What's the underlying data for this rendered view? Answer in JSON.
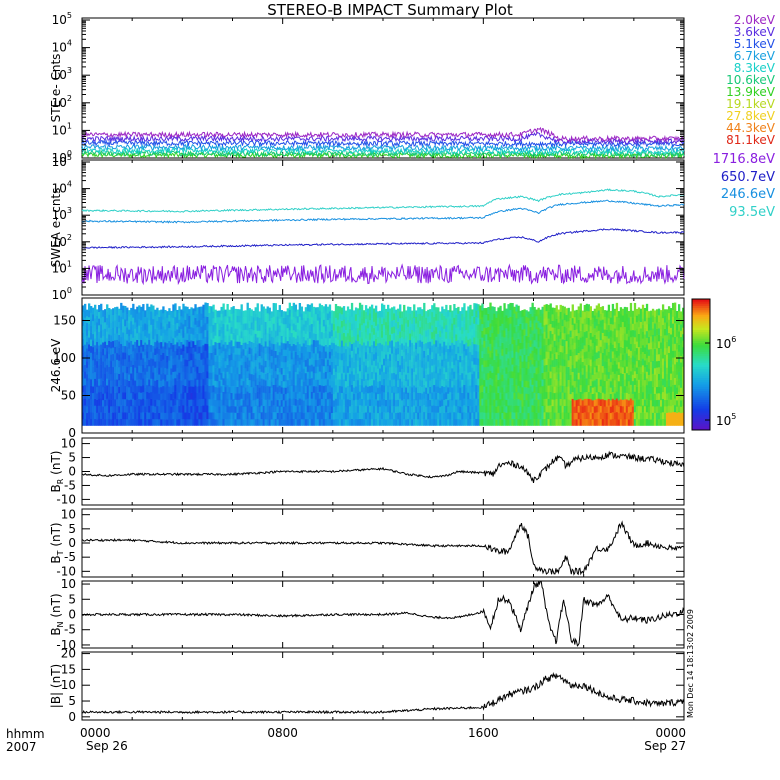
{
  "title": "STEREO-B IMPACT Summary Plot",
  "ste_energies": [
    {
      "label": "2.0keV",
      "color": "#9c27c4"
    },
    {
      "label": "3.6keV",
      "color": "#5a2ee0"
    },
    {
      "label": "5.1keV",
      "color": "#2250e8"
    },
    {
      "label": "6.7keV",
      "color": "#18a0e0"
    },
    {
      "label": "8.3keV",
      "color": "#18d0c8"
    },
    {
      "label": "10.6keV",
      "color": "#18c878"
    },
    {
      "label": "13.9keV",
      "color": "#30d020"
    },
    {
      "label": "19.1keV",
      "color": "#b8d820"
    },
    {
      "label": "27.8keV",
      "color": "#f0d020"
    },
    {
      "label": "44.3keV",
      "color": "#f08018"
    },
    {
      "label": "81.1keV",
      "color": "#e02818"
    }
  ],
  "swea_energies": [
    {
      "label": "1716.8eV",
      "color": "#8a20e0"
    },
    {
      "label": "650.7eV",
      "color": "#2020c8"
    },
    {
      "label": "246.6eV",
      "color": "#1890e0"
    },
    {
      "label": "93.5eV",
      "color": "#30d0c8"
    }
  ],
  "panels": {
    "ste": {
      "ylabel": "STE e- Cnts",
      "ytick_exponents": [
        "0",
        "1",
        "2",
        "3",
        "4",
        "5"
      ]
    },
    "swea": {
      "ylabel": "SWEA e- cnts",
      "ytick_exponents": [
        "0",
        "1",
        "2",
        "3",
        "4",
        "5"
      ]
    },
    "pad": {
      "ylabel": "246.6 eV",
      "yticks": [
        "0",
        "50",
        "100",
        "150"
      ],
      "colorbar_exponents": [
        "6",
        "5"
      ]
    },
    "br": {
      "ylabel_sub": "R",
      "yticks": [
        "10",
        "5",
        "0",
        "-5",
        "-10"
      ]
    },
    "bt": {
      "ylabel_sub": "T",
      "yticks": [
        "10",
        "5",
        "0",
        "-5",
        "-10"
      ]
    },
    "bn": {
      "ylabel_sub": "N",
      "yticks": [
        "10",
        "5",
        "0",
        "-5",
        "-10"
      ]
    },
    "bmag": {
      "ylabel": "|B| (nT)",
      "yticks": [
        "20",
        "15",
        "10",
        "5",
        "0"
      ]
    }
  },
  "xaxis": {
    "ticks": [
      "0000",
      "0800",
      "1600",
      "0000"
    ],
    "dates": {
      "start": "Sep 26",
      "end": "Sep 27"
    },
    "label_top": "hhmm",
    "label_bottom": "2007"
  },
  "side_note": "Mon Dec 14 18:13:02 2009",
  "chart_data": [
    {
      "type": "line",
      "panel": "STE",
      "title": "STEREO-B IMPACT Summary Plot",
      "ylabel": "STE e- Cnts",
      "yscale": "log",
      "ylim": [
        1,
        100000
      ],
      "xlim_hours": [
        0,
        24
      ],
      "series": [
        {
          "name": "2.0keV",
          "x": [
            0,
            6,
            12,
            17.5,
            18.2,
            19,
            24
          ],
          "y": [
            7,
            7,
            7,
            7,
            11,
            5,
            5
          ]
        },
        {
          "name": "3.6keV",
          "x": [
            0,
            17.5,
            18.2,
            19,
            24
          ],
          "y": [
            5,
            5,
            7,
            4,
            4
          ]
        },
        {
          "name": "5.1keV",
          "x": [
            0,
            24
          ],
          "y": [
            3.5,
            3.2
          ]
        },
        {
          "name": "6.7keV",
          "x": [
            0,
            24
          ],
          "y": [
            2.5,
            2.2
          ]
        },
        {
          "name": "8.3keV",
          "x": [
            0,
            24
          ],
          "y": [
            1.9,
            1.7
          ]
        },
        {
          "name": "10.6keV",
          "x": [
            0,
            24
          ],
          "y": [
            1.5,
            1.4
          ]
        },
        {
          "name": "13.9keV",
          "x": [
            0,
            24
          ],
          "y": [
            1.3,
            1.2
          ]
        }
      ]
    },
    {
      "type": "line",
      "panel": "SWEA",
      "ylabel": "SWEA e- cnts",
      "yscale": "log",
      "ylim": [
        1,
        100000
      ],
      "series": [
        {
          "name": "93.5eV",
          "x": [
            0,
            4,
            10,
            16,
            16.5,
            17.5,
            18.2,
            19,
            20,
            21,
            22,
            23,
            24
          ],
          "y": [
            1500,
            1400,
            1800,
            2200,
            4000,
            5000,
            3500,
            6000,
            7000,
            9000,
            8000,
            5000,
            6000
          ]
        },
        {
          "name": "246.6eV",
          "x": [
            0,
            4,
            10,
            16,
            16.5,
            17.5,
            18.2,
            19,
            20,
            21,
            22,
            23,
            24
          ],
          "y": [
            600,
            550,
            700,
            800,
            1300,
            1800,
            1200,
            2500,
            3000,
            3500,
            2800,
            2200,
            2500
          ]
        },
        {
          "name": "650.7eV",
          "x": [
            0,
            4,
            10,
            16,
            16.5,
            17.5,
            18.2,
            19,
            20,
            21,
            22,
            23,
            24
          ],
          "y": [
            60,
            65,
            80,
            90,
            120,
            150,
            100,
            200,
            250,
            300,
            260,
            220,
            230
          ]
        },
        {
          "name": "1716.8eV",
          "x": [
            0,
            24
          ],
          "y": [
            6,
            6
          ]
        }
      ]
    },
    {
      "type": "heatmap",
      "panel": "pitch angle",
      "ylabel": "246.6 eV",
      "ylim": [
        0,
        180
      ],
      "colorbar_range": [
        50000,
        2000000
      ],
      "colorbar_scale": "log"
    },
    {
      "type": "line",
      "panel": "BR",
      "ylabel": "BR (nT)",
      "ylim": [
        -10,
        10
      ],
      "x": [
        0,
        1,
        2,
        4,
        6,
        8,
        10,
        12,
        13,
        14,
        14.5,
        15,
        16,
        16.4,
        16.6,
        17,
        17.5,
        18,
        18.5,
        18.8,
        19,
        19.3,
        19.6,
        20,
        20.5,
        21,
        22,
        23,
        23.5,
        24
      ],
      "y": [
        -1,
        -1.5,
        -1,
        -1,
        -1,
        0,
        0,
        1,
        -1,
        -2,
        -1.5,
        0,
        -0.5,
        -1,
        2,
        3,
        2,
        -3,
        1,
        4,
        5,
        2,
        4,
        5,
        5,
        6,
        5,
        4,
        3,
        2
      ]
    },
    {
      "type": "line",
      "panel": "BT",
      "ylabel": "BT (nT)",
      "ylim": [
        -10,
        10
      ],
      "x": [
        0,
        2,
        4,
        6,
        8,
        10,
        12,
        14,
        16,
        16.6,
        17,
        17.5,
        17.8,
        18,
        18.5,
        19,
        19.3,
        19.5,
        19.8,
        20,
        20.5,
        21,
        21.5,
        22,
        22.5,
        23,
        23.5,
        24
      ],
      "y": [
        1,
        1,
        0,
        0,
        0,
        0,
        0,
        -1,
        -1,
        -3,
        -3,
        7,
        2,
        -8,
        -10,
        -10,
        -5,
        -10,
        -10,
        -10,
        -2,
        -2,
        7,
        -1,
        0,
        -1,
        -2,
        -2
      ]
    },
    {
      "type": "line",
      "panel": "BN",
      "ylabel": "BN (nT)",
      "ylim": [
        -10,
        10
      ],
      "x": [
        0,
        2,
        4,
        6,
        8,
        10,
        12,
        13,
        14,
        15,
        16,
        16.3,
        16.6,
        17,
        17.5,
        18,
        18.3,
        18.6,
        18.9,
        19.2,
        19.5,
        19.8,
        20,
        20.5,
        21,
        21.5,
        22,
        22.5,
        23,
        24
      ],
      "y": [
        0,
        0,
        0,
        0,
        -0.5,
        0,
        0,
        0.5,
        -1,
        -1,
        1,
        -4,
        5,
        5,
        -5,
        9,
        11,
        -3,
        -9,
        5,
        -8,
        -10,
        5,
        3,
        6,
        -2,
        -1,
        -2,
        -1,
        1
      ]
    },
    {
      "type": "line",
      "panel": "|B|",
      "ylabel": "|B| (nT)",
      "ylim": [
        0,
        20
      ],
      "x": [
        0,
        2,
        4,
        6,
        8,
        10,
        12,
        14,
        16,
        16.5,
        17,
        17.5,
        18,
        18.5,
        19,
        19.5,
        20,
        20.5,
        21,
        22,
        23,
        24
      ],
      "y": [
        1.5,
        1.5,
        1.5,
        1.5,
        1.5,
        1.5,
        1.5,
        2.5,
        3,
        5,
        7,
        8,
        9,
        12,
        13,
        10,
        10,
        8,
        6,
        5,
        4,
        5
      ]
    }
  ]
}
